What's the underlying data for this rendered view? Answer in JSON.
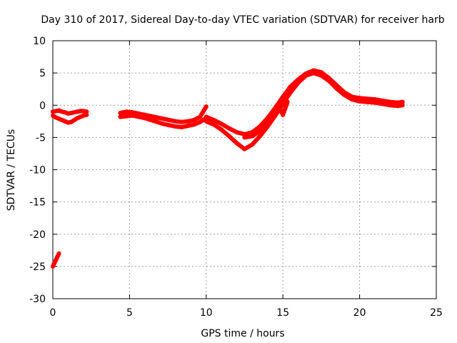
{
  "chart_data": {
    "type": "scatter",
    "title": "Day 310 of 2017, Sidereal Day-to-day VTEC variation (SDTVAR) for receiver harb",
    "xlabel": "GPS time / hours",
    "ylabel": "SDTVAR / TECUs",
    "xlim": [
      0,
      25
    ],
    "ylim": [
      -30,
      10
    ],
    "xticks": [
      0,
      5,
      10,
      15,
      20,
      25
    ],
    "yticks": [
      -30,
      -25,
      -20,
      -15,
      -10,
      -5,
      0,
      5,
      10
    ],
    "grid": true,
    "marker_color": "#ff0000",
    "series": [
      {
        "name": "segment-early-outlier",
        "points": [
          [
            0.0,
            -25.0
          ],
          [
            0.1,
            -24.5
          ],
          [
            0.2,
            -24.0
          ],
          [
            0.3,
            -23.5
          ],
          [
            0.4,
            -23.0
          ]
        ]
      },
      {
        "name": "segment-0-2h-upper",
        "points": [
          [
            0.0,
            -1.0
          ],
          [
            0.2,
            -0.9
          ],
          [
            0.4,
            -0.8
          ],
          [
            0.6,
            -1.0
          ],
          [
            0.8,
            -1.1
          ],
          [
            1.0,
            -1.3
          ],
          [
            1.2,
            -1.2
          ],
          [
            1.4,
            -1.1
          ],
          [
            1.6,
            -1.0
          ],
          [
            1.8,
            -0.9
          ],
          [
            2.0,
            -0.9
          ],
          [
            2.2,
            -1.0
          ]
        ]
      },
      {
        "name": "segment-0-2h-lower",
        "points": [
          [
            0.0,
            -1.6
          ],
          [
            0.2,
            -1.9
          ],
          [
            0.4,
            -2.1
          ],
          [
            0.6,
            -2.3
          ],
          [
            0.8,
            -2.5
          ],
          [
            1.0,
            -2.7
          ],
          [
            1.2,
            -2.6
          ],
          [
            1.4,
            -2.3
          ],
          [
            1.6,
            -2.0
          ],
          [
            1.8,
            -1.8
          ],
          [
            2.0,
            -1.6
          ],
          [
            2.2,
            -1.5
          ]
        ]
      },
      {
        "name": "segment-4-10h-a",
        "points": [
          [
            4.4,
            -1.2
          ],
          [
            4.8,
            -1.0
          ],
          [
            5.2,
            -1.1
          ],
          [
            5.6,
            -1.3
          ],
          [
            6.0,
            -1.5
          ],
          [
            6.4,
            -1.7
          ],
          [
            6.8,
            -1.9
          ],
          [
            7.2,
            -2.1
          ],
          [
            7.6,
            -2.3
          ],
          [
            8.0,
            -2.5
          ],
          [
            8.4,
            -2.6
          ],
          [
            8.8,
            -2.5
          ],
          [
            9.2,
            -2.3
          ],
          [
            9.6,
            -1.8
          ],
          [
            10.0,
            -0.2
          ]
        ]
      },
      {
        "name": "segment-4-10h-b",
        "points": [
          [
            4.4,
            -1.8
          ],
          [
            4.8,
            -1.7
          ],
          [
            5.2,
            -1.6
          ],
          [
            5.6,
            -1.8
          ],
          [
            6.0,
            -2.0
          ],
          [
            6.4,
            -2.3
          ],
          [
            6.8,
            -2.6
          ],
          [
            7.2,
            -2.9
          ],
          [
            7.6,
            -3.1
          ],
          [
            8.0,
            -3.3
          ],
          [
            8.4,
            -3.4
          ],
          [
            8.8,
            -3.2
          ],
          [
            9.2,
            -3.0
          ],
          [
            9.6,
            -2.6
          ],
          [
            10.0,
            -2.0
          ]
        ]
      },
      {
        "name": "segment-10-23h-upper",
        "points": [
          [
            10.0,
            -1.8
          ],
          [
            10.5,
            -2.3
          ],
          [
            11.0,
            -2.9
          ],
          [
            11.5,
            -3.6
          ],
          [
            12.0,
            -4.2
          ],
          [
            12.5,
            -4.5
          ],
          [
            13.0,
            -4.2
          ],
          [
            13.5,
            -3.3
          ],
          [
            14.0,
            -2.0
          ],
          [
            14.5,
            -0.4
          ],
          [
            15.0,
            1.3
          ],
          [
            15.5,
            2.9
          ],
          [
            16.0,
            4.0
          ],
          [
            16.5,
            4.9
          ],
          [
            17.0,
            5.4
          ],
          [
            17.5,
            5.1
          ],
          [
            18.0,
            4.2
          ],
          [
            18.5,
            3.1
          ],
          [
            19.0,
            2.0
          ],
          [
            19.5,
            1.3
          ],
          [
            20.0,
            1.1
          ],
          [
            20.5,
            1.0
          ],
          [
            21.0,
            0.9
          ],
          [
            21.5,
            0.7
          ],
          [
            22.0,
            0.5
          ],
          [
            22.5,
            0.4
          ],
          [
            22.8,
            0.5
          ]
        ]
      },
      {
        "name": "segment-10-23h-lower",
        "points": [
          [
            10.0,
            -2.5
          ],
          [
            10.5,
            -3.0
          ],
          [
            11.0,
            -3.8
          ],
          [
            11.5,
            -4.8
          ],
          [
            12.0,
            -5.9
          ],
          [
            12.5,
            -6.8
          ],
          [
            13.0,
            -6.1
          ],
          [
            13.5,
            -4.8
          ],
          [
            14.0,
            -3.3
          ],
          [
            14.5,
            -1.6
          ],
          [
            15.0,
            0.2
          ],
          [
            15.5,
            2.0
          ],
          [
            16.0,
            3.5
          ],
          [
            16.5,
            4.6
          ],
          [
            17.0,
            5.0
          ],
          [
            17.5,
            4.6
          ],
          [
            18.0,
            3.8
          ],
          [
            18.5,
            2.6
          ],
          [
            19.0,
            1.6
          ],
          [
            19.5,
            0.9
          ],
          [
            20.0,
            0.6
          ],
          [
            20.5,
            0.5
          ],
          [
            21.0,
            0.4
          ],
          [
            21.5,
            0.2
          ],
          [
            22.0,
            0.0
          ],
          [
            22.5,
            -0.1
          ],
          [
            22.8,
            0.0
          ]
        ]
      },
      {
        "name": "segment-13-15h-streak",
        "points": [
          [
            12.5,
            -5.0
          ],
          [
            13.0,
            -4.8
          ],
          [
            13.5,
            -4.0
          ],
          [
            14.0,
            -2.8
          ],
          [
            14.5,
            -1.0
          ],
          [
            14.7,
            0.0
          ],
          [
            15.0,
            -1.5
          ],
          [
            15.3,
            0.5
          ]
        ]
      }
    ]
  }
}
